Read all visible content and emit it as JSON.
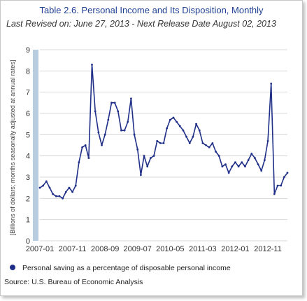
{
  "chart_data": {
    "type": "line",
    "title": "Table 2.6. Personal Income and Its Disposition, Monthly",
    "subtitle": "Last Revised on: June 27, 2013 - Next Release Date August 02, 2013",
    "ylabel": "[Billions of dollars; months seasonally adjusted at annual rates]",
    "xlabel": "",
    "ylim": [
      0,
      9
    ],
    "yticks": [
      0,
      1,
      2,
      3,
      4,
      5,
      6,
      7,
      8,
      9
    ],
    "xtick_labels": [
      "2007-01",
      "2007-11",
      "2008-09",
      "2009-07",
      "2010-05",
      "2011-03",
      "2012-01",
      "2012-11"
    ],
    "xtick_interval_months": 10,
    "grid": true,
    "legend_position": "bottom",
    "line_color": "#1f2f88",
    "axis_band_color": "#b8cde0",
    "series": [
      {
        "name": "Personal saving as a percentage of disposable personal income",
        "x": [
          "2007-01",
          "2007-02",
          "2007-03",
          "2007-04",
          "2007-05",
          "2007-06",
          "2007-07",
          "2007-08",
          "2007-09",
          "2007-10",
          "2007-11",
          "2007-12",
          "2008-01",
          "2008-02",
          "2008-03",
          "2008-04",
          "2008-05",
          "2008-06",
          "2008-07",
          "2008-08",
          "2008-09",
          "2008-10",
          "2008-11",
          "2008-12",
          "2009-01",
          "2009-02",
          "2009-03",
          "2009-04",
          "2009-05",
          "2009-06",
          "2009-07",
          "2009-08",
          "2009-09",
          "2009-10",
          "2009-11",
          "2009-12",
          "2010-01",
          "2010-02",
          "2010-03",
          "2010-04",
          "2010-05",
          "2010-06",
          "2010-07",
          "2010-08",
          "2010-09",
          "2010-10",
          "2010-11",
          "2010-12",
          "2011-01",
          "2011-02",
          "2011-03",
          "2011-04",
          "2011-05",
          "2011-06",
          "2011-07",
          "2011-08",
          "2011-09",
          "2011-10",
          "2011-11",
          "2011-12",
          "2012-01",
          "2012-02",
          "2012-03",
          "2012-04",
          "2012-05",
          "2012-06",
          "2012-07",
          "2012-08",
          "2012-09",
          "2012-10",
          "2012-11",
          "2012-12",
          "2013-01",
          "2013-02",
          "2013-03",
          "2013-04",
          "2013-05"
        ],
        "values": [
          2.5,
          2.6,
          2.8,
          2.5,
          2.2,
          2.1,
          2.1,
          2.0,
          2.3,
          2.5,
          2.3,
          2.6,
          3.7,
          4.4,
          4.5,
          3.9,
          8.3,
          6.1,
          5.1,
          4.5,
          5.0,
          5.7,
          6.5,
          6.5,
          6.1,
          5.2,
          5.2,
          5.6,
          6.7,
          5.0,
          4.3,
          3.1,
          4.0,
          3.5,
          3.9,
          4.0,
          4.7,
          4.6,
          4.6,
          5.3,
          5.7,
          5.8,
          5.6,
          5.4,
          5.2,
          4.9,
          4.6,
          4.9,
          5.5,
          5.2,
          4.6,
          4.5,
          4.4,
          4.6,
          4.2,
          4.0,
          3.5,
          3.6,
          3.2,
          3.5,
          3.7,
          3.5,
          3.7,
          3.5,
          3.8,
          4.1,
          3.9,
          3.6,
          3.3,
          3.8,
          4.7,
          7.4,
          2.2,
          2.6,
          2.6,
          3.0,
          3.2
        ]
      }
    ]
  },
  "legend": {
    "label": "Personal saving as a percentage of disposable personal income"
  },
  "source": "Source: U.S. Bureau of Economic Analysis"
}
